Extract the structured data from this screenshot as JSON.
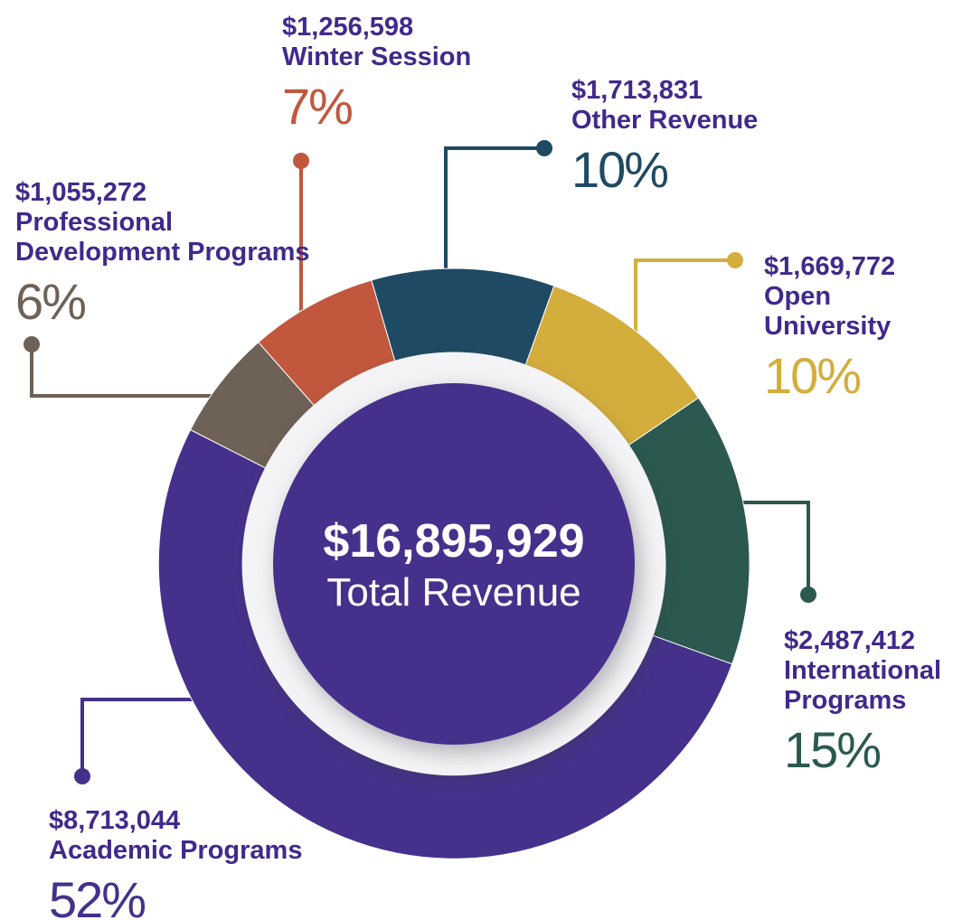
{
  "chart_data": {
    "type": "pie",
    "variant": "donut",
    "center": {
      "value": "$16,895,929",
      "label": "Total Revenue"
    },
    "total": 16895929,
    "start_angle_deg": -16.2,
    "legend_position": "callout-labels",
    "segments": [
      {
        "name": "Other Revenue",
        "amount_display": "$1,713,831",
        "value": 1713831,
        "percent": 10,
        "percent_display": "10%",
        "color": "#1F4A63"
      },
      {
        "name": "Open University",
        "amount_display": "$1,669,772",
        "value": 1669772,
        "percent": 10,
        "percent_display": "10%",
        "color": "#D4AE3C"
      },
      {
        "name": "International Programs",
        "amount_display": "$2,487,412",
        "value": 2487412,
        "percent": 15,
        "percent_display": "15%",
        "color": "#2B594F"
      },
      {
        "name": "Academic Programs",
        "amount_display": "$8,713,044",
        "value": 8713044,
        "percent": 52,
        "percent_display": "52%",
        "color": "#45318B"
      },
      {
        "name": "Professional Development Programs",
        "amount_display": "$1,055,272",
        "value": 1055272,
        "percent": 6,
        "percent_display": "6%",
        "color": "#6E6156"
      },
      {
        "name": "Winter Session",
        "amount_display": "$1,256,598",
        "value": 1256598,
        "percent": 7,
        "percent_display": "7%",
        "color": "#C1583E"
      }
    ]
  },
  "colors": {
    "background": "#FFFFFF",
    "label_text": "#41298C",
    "inner_ring": "#F4F4F6",
    "center_circle": "#45318B",
    "center_text": "#FFFFFF"
  }
}
